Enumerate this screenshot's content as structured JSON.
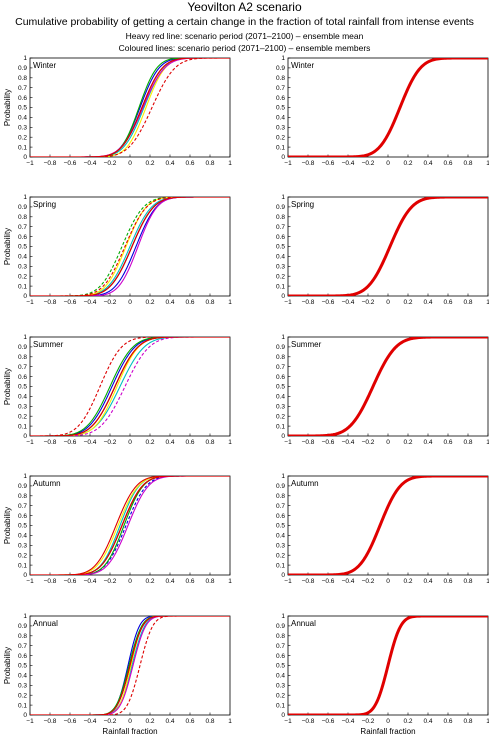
{
  "header": {
    "title": "Yeovilton A2 scenario",
    "subtitle": "Cumulative probability of getting a certain change in the fraction of total rainfall from intense events",
    "note_1": "Heavy red line: scenario period (2071–2100) – ensemble mean",
    "note_2": "Coloured lines: scenario period (2071–2100) – ensemble members"
  },
  "axes": {
    "xlabel": "Rainfall fraction",
    "ylabel": "Probability",
    "xlim": [
      -1,
      1
    ],
    "ylim": [
      0,
      1
    ],
    "xticks": [
      "−1",
      "−0.8",
      "−0.6",
      "−0.4",
      "−0.2",
      "0",
      "0.2",
      "0.4",
      "0.6",
      "0.8",
      "1"
    ],
    "yticks": [
      "0",
      "0.1",
      "0.2",
      "0.3",
      "0.4",
      "0.5",
      "0.6",
      "0.7",
      "0.8",
      "0.9",
      "1"
    ]
  },
  "colors": {
    "mean_line": "#e00000",
    "members": [
      "#000000",
      "#0000dd",
      "#00bfbf",
      "#ffee00",
      "#00aa00",
      "#cc00cc",
      "#dd0000"
    ]
  },
  "chart_data": [
    {
      "type": "line",
      "season": "Winter",
      "panel": "members",
      "mean": 0.12,
      "sd": 0.16,
      "series": [
        {
          "mean": 0.12,
          "sd": 0.16,
          "color": "#000000"
        },
        {
          "mean": 0.1,
          "sd": 0.15,
          "color": "#0000dd"
        },
        {
          "mean": 0.14,
          "sd": 0.16,
          "color": "#00bfbf"
        },
        {
          "mean": 0.16,
          "sd": 0.15,
          "color": "#ffee00"
        },
        {
          "mean": 0.09,
          "sd": 0.14,
          "color": "#00aa00"
        },
        {
          "mean": 0.13,
          "sd": 0.17,
          "color": "#cc00cc"
        },
        {
          "mean": 0.22,
          "sd": 0.18,
          "color": "#dd0000",
          "dashed": true
        }
      ]
    },
    {
      "type": "line",
      "season": "Winter",
      "panel": "mean",
      "mean": 0.12,
      "sd": 0.16
    },
    {
      "type": "line",
      "season": "Spring",
      "panel": "members",
      "mean": 0.02,
      "sd": 0.17,
      "series": [
        {
          "mean": 0.02,
          "sd": 0.17,
          "color": "#000000"
        },
        {
          "mean": 0.06,
          "sd": 0.16,
          "color": "#0000dd"
        },
        {
          "mean": 0.0,
          "sd": 0.17,
          "color": "#00bfbf"
        },
        {
          "mean": -0.04,
          "sd": 0.16,
          "color": "#ffee00"
        },
        {
          "mean": -0.08,
          "sd": 0.17,
          "color": "#00aa00",
          "dashed": true
        },
        {
          "mean": 0.08,
          "sd": 0.15,
          "color": "#cc00cc"
        },
        {
          "mean": -0.05,
          "sd": 0.17,
          "color": "#dd0000",
          "dashed": true
        }
      ]
    },
    {
      "type": "line",
      "season": "Spring",
      "panel": "mean",
      "mean": 0.02,
      "sd": 0.17
    },
    {
      "type": "line",
      "season": "Summer",
      "panel": "members",
      "mean": -0.15,
      "sd": 0.18,
      "series": [
        {
          "mean": -0.15,
          "sd": 0.18,
          "color": "#000000"
        },
        {
          "mean": -0.18,
          "sd": 0.18,
          "color": "#0000dd"
        },
        {
          "mean": -0.1,
          "sd": 0.19,
          "color": "#00bfbf"
        },
        {
          "mean": -0.13,
          "sd": 0.17,
          "color": "#ffee00"
        },
        {
          "mean": -0.2,
          "sd": 0.18,
          "color": "#00aa00"
        },
        {
          "mean": -0.05,
          "sd": 0.19,
          "color": "#cc00cc",
          "dashed": true
        },
        {
          "mean": -0.3,
          "sd": 0.17,
          "color": "#dd0000",
          "dashed": true
        }
      ]
    },
    {
      "type": "line",
      "season": "Summer",
      "panel": "mean",
      "mean": -0.15,
      "sd": 0.18
    },
    {
      "type": "line",
      "season": "Autumn",
      "panel": "members",
      "mean": -0.08,
      "sd": 0.16,
      "series": [
        {
          "mean": -0.08,
          "sd": 0.16,
          "color": "#000000"
        },
        {
          "mean": -0.04,
          "sd": 0.16,
          "color": "#0000dd",
          "dashed": true
        },
        {
          "mean": -0.1,
          "sd": 0.15,
          "color": "#00bfbf"
        },
        {
          "mean": -0.12,
          "sd": 0.16,
          "color": "#ffee00"
        },
        {
          "mean": -0.06,
          "sd": 0.15,
          "color": "#00aa00"
        },
        {
          "mean": -0.02,
          "sd": 0.16,
          "color": "#cc00cc"
        },
        {
          "mean": -0.14,
          "sd": 0.16,
          "color": "#dd0000"
        }
      ]
    },
    {
      "type": "line",
      "season": "Autumn",
      "panel": "mean",
      "mean": -0.08,
      "sd": 0.16
    },
    {
      "type": "line",
      "season": "Annual",
      "panel": "members",
      "mean": 0.0,
      "sd": 0.1,
      "series": [
        {
          "mean": 0.0,
          "sd": 0.1,
          "color": "#000000"
        },
        {
          "mean": -0.02,
          "sd": 0.09,
          "color": "#0000dd"
        },
        {
          "mean": 0.02,
          "sd": 0.1,
          "color": "#00bfbf"
        },
        {
          "mean": 0.01,
          "sd": 0.09,
          "color": "#ffee00"
        },
        {
          "mean": -0.01,
          "sd": 0.1,
          "color": "#00aa00"
        },
        {
          "mean": 0.03,
          "sd": 0.1,
          "color": "#cc00cc"
        },
        {
          "mean": 0.1,
          "sd": 0.1,
          "color": "#dd0000",
          "dashed": true
        }
      ]
    },
    {
      "type": "line",
      "season": "Annual",
      "panel": "mean",
      "mean": 0.0,
      "sd": 0.1
    }
  ]
}
